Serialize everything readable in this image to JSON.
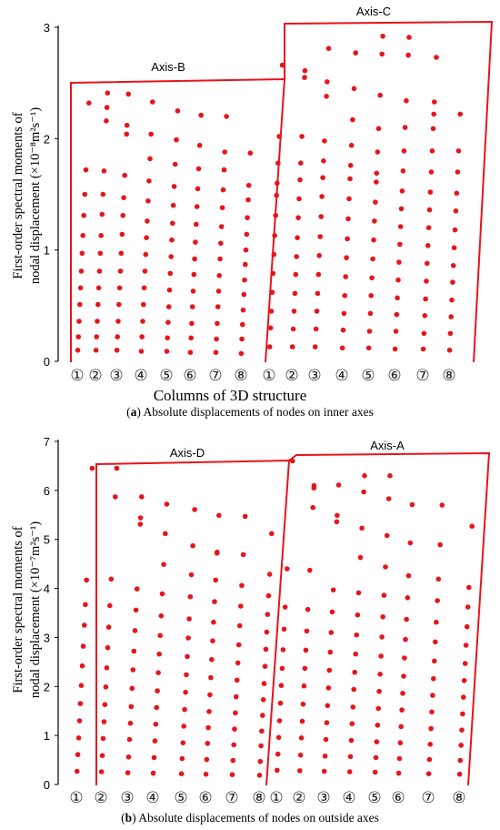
{
  "chart_data": [
    {
      "type": "scatter",
      "panel_label": "(a)",
      "caption": "Absolute displacements of nodes on inner axes",
      "ylabel_line1": "First-order spectral moments of",
      "ylabel_line2": "nodal displacement (×10⁻⁸m²s⁻¹)",
      "xlabel": "Columns of  3D structure",
      "ylim": [
        0,
        3
      ],
      "yticks": [
        "0",
        "1",
        "2",
        "3"
      ],
      "column_labels": [
        "①",
        "②",
        "③",
        "④",
        "⑤",
        "⑥",
        "⑦",
        "⑧",
        "①",
        "②",
        "③",
        "④",
        "⑤",
        "⑥",
        "⑦",
        "⑧"
      ],
      "groups": [
        {
          "name": "Axis-B",
          "columns": [
            [
              0.1,
              0.22,
              0.36,
              0.51,
              0.66,
              0.81,
              0.97,
              1.13,
              1.31,
              1.5,
              1.72,
              2.32
            ],
            [
              0.1,
              0.22,
              0.36,
              0.51,
              0.66,
              0.81,
              0.97,
              1.13,
              1.32,
              1.5,
              1.71,
              2.16,
              2.28,
              2.41
            ],
            [
              0.1,
              0.22,
              0.36,
              0.51,
              0.66,
              0.81,
              0.97,
              1.14,
              1.31,
              1.47,
              1.67,
              2.04,
              2.12,
              2.4
            ],
            [
              0.09,
              0.22,
              0.36,
              0.51,
              0.66,
              0.81,
              0.96,
              1.11,
              1.26,
              1.44,
              1.62,
              1.82,
              2.04,
              2.33
            ],
            [
              0.09,
              0.21,
              0.35,
              0.49,
              0.64,
              0.79,
              0.94,
              1.09,
              1.24,
              1.4,
              1.57,
              1.77,
              1.99,
              2.25
            ],
            [
              0.08,
              0.21,
              0.34,
              0.49,
              0.63,
              0.78,
              0.92,
              1.07,
              1.23,
              1.39,
              1.55,
              1.73,
              1.94,
              2.21
            ],
            [
              0.08,
              0.2,
              0.34,
              0.49,
              0.63,
              0.77,
              0.92,
              1.06,
              1.21,
              1.38,
              1.54,
              1.72,
              1.88,
              2.2
            ],
            [
              0.07,
              0.2,
              0.33,
              0.46,
              0.6,
              0.73,
              0.87,
              1.0,
              1.14,
              1.29,
              1.45,
              1.58,
              1.87
            ]
          ]
        },
        {
          "name": "Axis-C",
          "columns": [
            [
              0.13,
              0.3,
              0.45,
              0.62,
              0.79,
              0.96,
              1.13,
              1.31,
              1.49,
              1.6,
              1.78,
              2.02,
              2.66
            ],
            [
              0.13,
              0.29,
              0.45,
              0.61,
              0.78,
              0.94,
              1.11,
              1.29,
              1.46,
              1.63,
              1.78,
              2.02,
              2.55,
              2.61
            ],
            [
              0.13,
              0.29,
              0.45,
              0.61,
              0.78,
              0.95,
              1.12,
              1.3,
              1.48,
              1.65,
              1.8,
              1.98,
              2.38,
              2.51,
              2.81
            ],
            [
              0.12,
              0.28,
              0.43,
              0.59,
              0.76,
              0.93,
              1.1,
              1.28,
              1.46,
              1.64,
              1.76,
              1.94,
              2.17,
              2.45,
              2.77
            ],
            [
              0.12,
              0.27,
              0.43,
              0.59,
              0.75,
              0.92,
              1.09,
              1.26,
              1.43,
              1.61,
              1.69,
              1.88,
              2.09,
              2.39,
              2.76,
              2.92
            ],
            [
              0.11,
              0.27,
              0.42,
              0.57,
              0.73,
              0.89,
              1.05,
              1.21,
              1.37,
              1.53,
              1.71,
              1.89,
              2.1,
              2.34,
              2.75,
              2.91
            ],
            [
              0.11,
              0.25,
              0.41,
              0.56,
              0.72,
              0.88,
              1.04,
              1.2,
              1.36,
              1.52,
              1.7,
              1.89,
              2.09,
              2.22,
              2.33,
              2.73
            ],
            [
              0.1,
              0.25,
              0.4,
              0.55,
              0.71,
              0.86,
              1.02,
              1.18,
              1.35,
              1.51,
              1.7,
              1.89,
              2.22
            ]
          ]
        }
      ]
    },
    {
      "type": "scatter",
      "panel_label": "(b)",
      "caption": "Absolute displacements of nodes on outside axes",
      "ylabel_line1": "First-order spectral moments of",
      "ylabel_line2": "nodal displacement (×10⁻⁷m²s⁻¹)",
      "xlabel": "",
      "ylim": [
        0,
        7
      ],
      "yticks": [
        "0",
        "1",
        "2",
        "3",
        "4",
        "5",
        "6",
        "7"
      ],
      "column_labels": [
        "①",
        "②",
        "③",
        "④",
        "⑤",
        "⑥",
        "⑦",
        "⑧",
        "①",
        "②",
        "③",
        "④",
        "⑤",
        "⑥",
        "⑦",
        "⑧"
      ],
      "groups": [
        {
          "name": "Axis-D",
          "columns": [
            [
              0.27,
              0.61,
              0.95,
              1.3,
              1.65,
              2.02,
              2.42,
              2.82,
              3.25,
              3.67,
              4.17,
              6.45
            ],
            [
              0.26,
              0.59,
              0.94,
              1.28,
              1.63,
              1.99,
              2.38,
              2.79,
              3.21,
              3.65,
              4.19,
              5.87,
              6.45
            ],
            [
              0.24,
              0.56,
              0.92,
              1.25,
              1.59,
              1.96,
              2.34,
              2.72,
              3.14,
              3.56,
              3.99,
              5.31,
              5.44,
              5.87
            ],
            [
              0.23,
              0.55,
              0.89,
              1.23,
              1.57,
              1.91,
              2.28,
              2.66,
              3.04,
              3.44,
              3.89,
              4.49,
              5.12,
              5.72
            ],
            [
              0.22,
              0.53,
              0.85,
              1.19,
              1.53,
              1.88,
              2.24,
              2.61,
              2.99,
              3.38,
              3.83,
              4.28,
              4.87,
              5.61
            ],
            [
              0.21,
              0.51,
              0.84,
              1.16,
              1.49,
              1.83,
              2.18,
              2.55,
              2.93,
              3.31,
              3.73,
              4.17,
              4.72,
              4.74,
              5.49
            ],
            [
              0.2,
              0.49,
              0.81,
              1.13,
              1.46,
              1.79,
              2.13,
              2.48,
              2.85,
              3.24,
              3.64,
              4.06,
              4.69,
              5.47
            ],
            [
              0.19,
              0.47,
              0.79,
              1.09,
              1.41,
              1.73,
              2.06,
              2.41,
              2.76,
              3.11,
              3.47,
              3.85,
              4.29,
              5.12
            ]
          ]
        },
        {
          "name": "Axis-A",
          "columns": [
            [
              0.29,
              0.62,
              0.96,
              1.3,
              1.66,
              2.02,
              2.37,
              2.75,
              3.17,
              3.62,
              4.4,
              6.6
            ],
            [
              0.28,
              0.6,
              0.95,
              1.29,
              1.64,
              2.01,
              2.37,
              2.74,
              3.13,
              3.57,
              4.37,
              5.65,
              6.05,
              6.1
            ],
            [
              0.27,
              0.58,
              0.92,
              1.26,
              1.61,
              1.97,
              2.33,
              2.7,
              3.1,
              3.52,
              3.97,
              5.36,
              5.49,
              6.11
            ],
            [
              0.26,
              0.57,
              0.9,
              1.24,
              1.58,
              1.94,
              2.29,
              2.66,
              3.05,
              3.46,
              3.91,
              4.63,
              5.23,
              5.97,
              6.3
            ],
            [
              0.25,
              0.55,
              0.87,
              1.21,
              1.55,
              1.9,
              2.25,
              2.62,
              3.01,
              3.42,
              3.86,
              4.44,
              5.08,
              5.83,
              6.3
            ],
            [
              0.23,
              0.53,
              0.85,
              1.18,
              1.52,
              1.86,
              2.21,
              2.58,
              2.96,
              3.37,
              3.81,
              4.26,
              4.93,
              5.71
            ],
            [
              0.22,
              0.51,
              0.82,
              1.14,
              1.48,
              1.82,
              2.16,
              2.52,
              2.91,
              3.31,
              3.75,
              4.19,
              4.89,
              5.7
            ],
            [
              0.21,
              0.49,
              0.8,
              1.11,
              1.44,
              1.78,
              2.12,
              2.47,
              2.84,
              3.22,
              3.62,
              4.02,
              5.27
            ]
          ]
        }
      ]
    }
  ]
}
